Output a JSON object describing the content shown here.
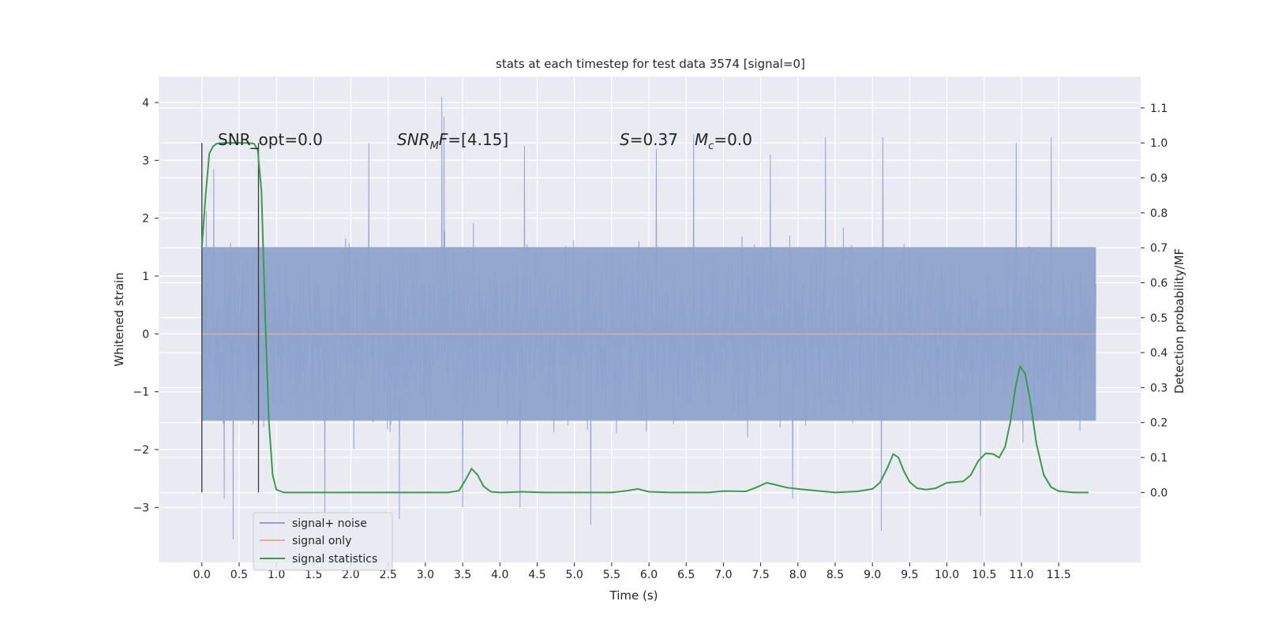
{
  "chart_data": {
    "type": "line",
    "title": "stats at each timestep for test data 3574 [signal=0]",
    "xlabel": "Time (s)",
    "ylabel": "Whitened strain",
    "ylabel_right": "Detection probability/MF",
    "xlim": [
      -0.58,
      12.6
    ],
    "ylim": [
      -3.95,
      4.45
    ],
    "ylim_right": [
      -0.2,
      1.19
    ],
    "x_ticks": [
      0.0,
      0.5,
      1.0,
      1.5,
      2.0,
      2.5,
      3.0,
      3.5,
      4.0,
      4.5,
      5.0,
      5.5,
      6.0,
      6.5,
      7.0,
      7.5,
      8.0,
      8.5,
      9.0,
      9.5,
      10.0,
      10.5,
      11.0,
      11.5
    ],
    "x_tick_labels": [
      "0.0",
      "0.5",
      "1.0",
      "1.5",
      "2.0",
      "2.5",
      "3.0",
      "3.5",
      "4.0",
      "4.5",
      "5.0",
      "5.5",
      "6.0",
      "6.5",
      "7.0",
      "7.5",
      "8.0",
      "8.5",
      "9.0",
      "9.5",
      "10.0",
      "10.5",
      "11.0",
      "11.5"
    ],
    "y_ticks": [
      4,
      3,
      2,
      1,
      0,
      -1,
      -2,
      -3
    ],
    "y_tick_labels": [
      "4",
      "3",
      "2",
      "1",
      "0",
      "−1",
      "−2",
      "−3"
    ],
    "y_ticks_right": [
      1.1,
      1.0,
      0.9,
      0.8,
      0.7,
      0.6,
      0.5,
      0.4,
      0.3,
      0.2,
      0.1,
      0.0
    ],
    "y_tick_labels_right": [
      "1.1",
      "1.0",
      "0.9",
      "0.8",
      "0.7",
      "0.6",
      "0.5",
      "0.4",
      "0.3",
      "0.2",
      "0.1",
      "0.0"
    ],
    "grid": true,
    "legend_position": "lower-left",
    "annotations": {
      "snr_opt": "SNR_opt=0.0",
      "snr_mf_main": "SNR",
      "snr_mf_sub": "M",
      "snr_mf_rest": "F=[4.15]",
      "s_label": "S",
      "s_rest": "=0.37",
      "mc_main": "M",
      "mc_sub": "c",
      "mc_rest": "=0.0"
    },
    "vertical_markers": [
      0.0,
      0.76
    ],
    "series": [
      {
        "name": "signal+ noise",
        "color": "#8ea3cc",
        "axis": "left",
        "x_range": [
          0.0,
          12.0
        ],
        "samples": 2400,
        "core_band": [
          -1.5,
          1.5
        ],
        "peaks": [
          {
            "x": 3.22,
            "y": 4.1
          },
          {
            "x": 3.25,
            "y": 3.75
          },
          {
            "x": 0.16,
            "y": 2.85
          },
          {
            "x": 6.6,
            "y": 3.45
          },
          {
            "x": 8.37,
            "y": 3.4
          },
          {
            "x": 9.14,
            "y": 3.4
          },
          {
            "x": 11.4,
            "y": 3.4
          },
          {
            "x": 10.93,
            "y": 3.3
          },
          {
            "x": 2.24,
            "y": 3.3
          },
          {
            "x": 4.33,
            "y": 3.25
          },
          {
            "x": 6.1,
            "y": 3.2
          },
          {
            "x": 7.63,
            "y": 3.1
          },
          {
            "x": 0.42,
            "y": -3.55
          },
          {
            "x": 1.65,
            "y": -3.25
          },
          {
            "x": 2.65,
            "y": -3.2
          },
          {
            "x": 5.22,
            "y": -3.3
          },
          {
            "x": 9.12,
            "y": -3.4
          },
          {
            "x": 3.5,
            "y": -3.0
          },
          {
            "x": 4.27,
            "y": -3.0
          },
          {
            "x": 10.45,
            "y": -3.15
          },
          {
            "x": 0.3,
            "y": -2.85
          },
          {
            "x": 7.93,
            "y": -2.85
          }
        ]
      },
      {
        "name": "signal only",
        "color": "#e5ae98",
        "axis": "left",
        "x": [
          0.0,
          12.0
        ],
        "y": [
          0.0,
          0.0
        ]
      },
      {
        "name": "signal statistics",
        "color": "#3a9c4b",
        "axis": "right",
        "x": [
          0.0,
          0.05,
          0.1,
          0.15,
          0.2,
          0.3,
          0.4,
          0.5,
          0.6,
          0.7,
          0.75,
          0.8,
          0.85,
          0.9,
          0.95,
          1.0,
          1.1,
          1.5,
          2.0,
          2.5,
          3.0,
          3.3,
          3.45,
          3.55,
          3.62,
          3.7,
          3.78,
          3.88,
          4.0,
          4.3,
          4.6,
          5.0,
          5.5,
          5.7,
          5.85,
          6.0,
          6.3,
          6.8,
          7.0,
          7.3,
          7.45,
          7.58,
          7.7,
          7.85,
          8.0,
          8.3,
          8.5,
          8.8,
          9.0,
          9.1,
          9.2,
          9.28,
          9.35,
          9.42,
          9.5,
          9.6,
          9.72,
          9.85,
          10.0,
          10.12,
          10.22,
          10.32,
          10.42,
          10.52,
          10.62,
          10.7,
          10.78,
          10.85,
          10.92,
          10.98,
          11.05,
          11.12,
          11.2,
          11.3,
          11.4,
          11.5,
          11.7,
          11.9
        ],
        "y": [
          0.7,
          0.85,
          0.97,
          0.99,
          0.998,
          1.0,
          1.0,
          1.0,
          1.0,
          0.998,
          0.98,
          0.86,
          0.5,
          0.2,
          0.05,
          0.008,
          0.0,
          0.0,
          0.0,
          0.0,
          0.0,
          0.0,
          0.005,
          0.04,
          0.068,
          0.05,
          0.018,
          0.002,
          0.0,
          0.002,
          0.0,
          0.0,
          0.0,
          0.005,
          0.01,
          0.002,
          0.0,
          0.0,
          0.004,
          0.003,
          0.015,
          0.028,
          0.022,
          0.014,
          0.01,
          0.004,
          0.0,
          0.003,
          0.01,
          0.028,
          0.07,
          0.11,
          0.1,
          0.062,
          0.03,
          0.012,
          0.008,
          0.012,
          0.028,
          0.03,
          0.032,
          0.05,
          0.09,
          0.112,
          0.11,
          0.1,
          0.13,
          0.2,
          0.3,
          0.36,
          0.34,
          0.26,
          0.14,
          0.05,
          0.015,
          0.004,
          0.0,
          0.0
        ]
      }
    ]
  }
}
